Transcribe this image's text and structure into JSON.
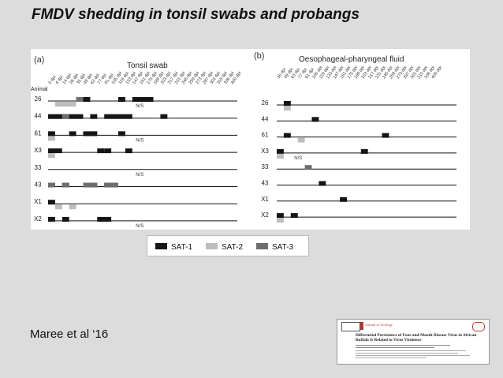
{
  "slide": {
    "title": "FMDV shedding in tonsil swabs and probangs",
    "citation": "Maree et al ‘16"
  },
  "panel_a": {
    "label": "(a)",
    "title": "Tonsil swab",
    "animal_header": "Animal",
    "dpi_labels": [
      "0 dpi",
      "4 dpi",
      "14 dpi",
      "28 dpi",
      "35 dpi",
      "49 dpi",
      "63 dpi",
      "77 dpi",
      "91 dpi",
      "105 dpi",
      "119 dpi",
      "133 dpi",
      "147 dpi",
      "161 dpi",
      "175 dpi",
      "189 dpi",
      "203 dpi",
      "217 dpi",
      "231 dpi",
      "245 dpi",
      "259 dpi",
      "273 dpi",
      "287 dpi",
      "301 dpi",
      "315 dpi",
      "336 dpi",
      "400 dpi"
    ],
    "rows": [
      {
        "animal": "26",
        "ns": "N/S",
        "bars": [
          {
            "c": "g",
            "s": 1,
            "e": 4
          },
          {
            "c": "m",
            "s": 4,
            "e": 5
          },
          {
            "c": "k",
            "s": 5,
            "e": 6
          },
          {
            "c": "k",
            "s": 10,
            "e": 11
          },
          {
            "c": "k",
            "s": 12,
            "e": 15
          }
        ]
      },
      {
        "animal": "44",
        "ns": "",
        "bars": [
          {
            "c": "k",
            "s": 0,
            "e": 5
          },
          {
            "c": "k",
            "s": 6,
            "e": 7
          },
          {
            "c": "k",
            "s": 8,
            "e": 12
          },
          {
            "c": "k",
            "s": 16,
            "e": 17
          },
          {
            "c": "m",
            "s": 2,
            "e": 3
          }
        ]
      },
      {
        "animal": "61",
        "ns": "N/S",
        "bars": [
          {
            "c": "k",
            "s": 0,
            "e": 1
          },
          {
            "c": "g",
            "s": 0,
            "e": 1
          },
          {
            "c": "k",
            "s": 3,
            "e": 4
          },
          {
            "c": "k",
            "s": 5,
            "e": 7
          },
          {
            "c": "k",
            "s": 10,
            "e": 11
          }
        ]
      },
      {
        "animal": "X3",
        "ns": "",
        "bars": [
          {
            "c": "k",
            "s": 0,
            "e": 2
          },
          {
            "c": "g",
            "s": 0,
            "e": 1
          },
          {
            "c": "k",
            "s": 7,
            "e": 8
          },
          {
            "c": "k",
            "s": 8,
            "e": 9
          },
          {
            "c": "k",
            "s": 11,
            "e": 12
          }
        ]
      },
      {
        "animal": "33",
        "ns": "N/S",
        "bars": []
      },
      {
        "animal": "43",
        "ns": "",
        "bars": [
          {
            "c": "k",
            "s": 0,
            "e": 1
          },
          {
            "c": "k",
            "s": 2,
            "e": 3
          },
          {
            "c": "k",
            "s": 5,
            "e": 7
          },
          {
            "c": "k",
            "s": 8,
            "e": 10
          },
          {
            "c": "m",
            "s": 0,
            "e": 1
          },
          {
            "c": "m",
            "s": 2,
            "e": 3
          },
          {
            "c": "m",
            "s": 5,
            "e": 7
          },
          {
            "c": "m",
            "s": 8,
            "e": 10
          }
        ]
      },
      {
        "animal": "X1",
        "ns": "",
        "bars": [
          {
            "c": "k",
            "s": 0,
            "e": 1
          },
          {
            "c": "g",
            "s": 1,
            "e": 2
          },
          {
            "c": "g",
            "s": 3,
            "e": 4
          }
        ]
      },
      {
        "animal": "X2",
        "ns": "N/S",
        "bars": [
          {
            "c": "k",
            "s": 0,
            "e": 1
          },
          {
            "c": "k",
            "s": 2,
            "e": 3
          },
          {
            "c": "k",
            "s": 7,
            "e": 9
          }
        ]
      }
    ]
  },
  "panel_b": {
    "label": "(b)",
    "title": "Oesophageal-pharyngeal fluid",
    "dpi_labels": [
      "35 dpi",
      "49 dpi",
      "63 dpi",
      "77 dpi",
      "91 dpi",
      "105 dpi",
      "119 dpi",
      "133 dpi",
      "147 dpi",
      "161 dpi",
      "175 dpi",
      "189 dpi",
      "203 dpi",
      "217 dpi",
      "231 dpi",
      "245 dpi",
      "259 dpi",
      "273 dpi",
      "287 dpi",
      "301 dpi",
      "315 dpi",
      "336 dpi",
      "400 dpi"
    ],
    "rows": [
      {
        "animal": "26",
        "ns": "",
        "bars": [
          {
            "c": "k",
            "s": 1,
            "e": 2
          },
          {
            "c": "g",
            "s": 1,
            "e": 2
          }
        ]
      },
      {
        "animal": "44",
        "ns": "",
        "bars": [
          {
            "c": "k",
            "s": 5,
            "e": 6
          }
        ]
      },
      {
        "animal": "61",
        "ns": "",
        "bars": [
          {
            "c": "k",
            "s": 1,
            "e": 2
          },
          {
            "c": "g",
            "s": 3,
            "e": 4
          },
          {
            "c": "k",
            "s": 15,
            "e": 16
          }
        ]
      },
      {
        "animal": "X3",
        "ns": "N/S",
        "bars": [
          {
            "c": "k",
            "s": 0,
            "e": 1
          },
          {
            "c": "g",
            "s": 0,
            "e": 1
          },
          {
            "c": "k",
            "s": 12,
            "e": 13
          }
        ]
      },
      {
        "animal": "33",
        "ns": "",
        "bars": [
          {
            "c": "m",
            "s": 4,
            "e": 5
          }
        ]
      },
      {
        "animal": "43",
        "ns": "",
        "bars": [
          {
            "c": "k",
            "s": 6,
            "e": 7
          }
        ]
      },
      {
        "animal": "X1",
        "ns": "",
        "bars": [
          {
            "c": "k",
            "s": 9,
            "e": 10
          }
        ]
      },
      {
        "animal": "X2",
        "ns": "",
        "bars": [
          {
            "c": "k",
            "s": 0,
            "e": 1
          },
          {
            "c": "k",
            "s": 2,
            "e": 3
          },
          {
            "c": "g",
            "s": 0,
            "e": 1
          }
        ]
      }
    ]
  },
  "legend": [
    {
      "label": "SAT-1",
      "color": "#151515"
    },
    {
      "label": "SAT-2",
      "color": "#bdbdbd"
    },
    {
      "label": "SAT-3",
      "color": "#6e6e6e"
    }
  ],
  "colors": {
    "k": "#151515",
    "g": "#bdbdbd",
    "m": "#6e6e6e"
  },
  "paper": {
    "journal": "Journal of Virology",
    "title_line1": "Differential Persistence of Foot-and-Mouth Disease Virus in African",
    "title_line2": "Buffalo Is Related to Virus Virulence"
  }
}
